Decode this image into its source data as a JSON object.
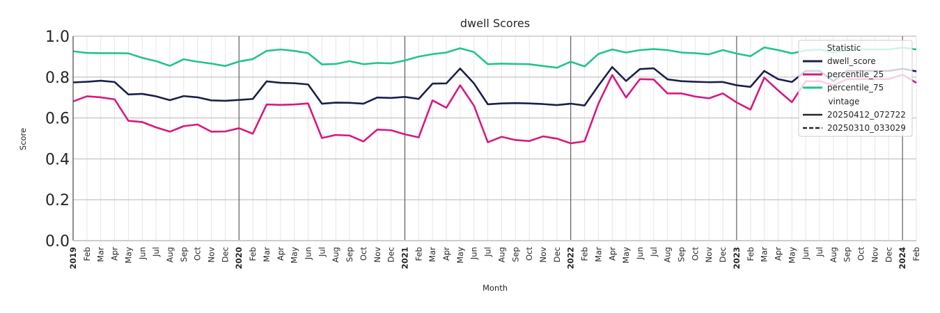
{
  "chart_data": {
    "type": "line",
    "title": "dwell Scores",
    "xlabel": "Month",
    "ylabel": "Score",
    "ylim": [
      0.0,
      1.0
    ],
    "yticks": [
      "0.0",
      "0.2",
      "0.4",
      "0.6",
      "0.8",
      "1.0"
    ],
    "grid": true,
    "legend_placement": "top-right",
    "x": [
      "2019-01",
      "2019-02",
      "2019-03",
      "2019-04",
      "2019-05",
      "2019-06",
      "2019-07",
      "2019-08",
      "2019-09",
      "2019-10",
      "2019-11",
      "2019-12",
      "2020-01",
      "2020-02",
      "2020-03",
      "2020-04",
      "2020-05",
      "2020-06",
      "2020-07",
      "2020-08",
      "2020-09",
      "2020-10",
      "2020-11",
      "2020-12",
      "2021-01",
      "2021-02",
      "2021-03",
      "2021-04",
      "2021-05",
      "2021-06",
      "2021-07",
      "2021-08",
      "2021-09",
      "2021-10",
      "2021-11",
      "2021-12",
      "2022-01",
      "2022-02",
      "2022-03",
      "2022-04",
      "2022-05",
      "2022-06",
      "2022-07",
      "2022-08",
      "2022-09",
      "2022-10",
      "2022-11",
      "2022-12",
      "2023-01",
      "2023-02",
      "2023-03",
      "2023-04",
      "2023-05",
      "2023-06",
      "2023-07",
      "2023-08",
      "2023-09",
      "2023-10",
      "2023-11",
      "2023-12",
      "2024-01",
      "2024-02"
    ],
    "x_tick_labels": [
      "2019",
      "Feb",
      "Mar",
      "Apr",
      "May",
      "Jun",
      "Jul",
      "Aug",
      "Sep",
      "Oct",
      "Nov",
      "Dec",
      "2020",
      "Feb",
      "Mar",
      "Apr",
      "May",
      "Jun",
      "Jul",
      "Aug",
      "Sep",
      "Oct",
      "Nov",
      "Dec",
      "2021",
      "Feb",
      "Mar",
      "Apr",
      "May",
      "Jun",
      "Jul",
      "Aug",
      "Sep",
      "Oct",
      "Nov",
      "Dec",
      "2022",
      "Feb",
      "Mar",
      "Apr",
      "May",
      "Jun",
      "Jul",
      "Aug",
      "Sep",
      "Oct",
      "Nov",
      "Dec",
      "2023",
      "Feb",
      "Mar",
      "Apr",
      "May",
      "Jun",
      "Jul",
      "Aug",
      "Sep",
      "Oct",
      "Nov",
      "Dec",
      "2024",
      "Feb"
    ],
    "series": [
      {
        "name": "dwell_score",
        "color": "#1b1f4b",
        "values": [
          0.774,
          0.777,
          0.782,
          0.776,
          0.715,
          0.718,
          0.706,
          0.687,
          0.707,
          0.701,
          0.686,
          0.684,
          0.688,
          0.693,
          0.779,
          0.772,
          0.77,
          0.764,
          0.67,
          0.675,
          0.674,
          0.67,
          0.7,
          0.698,
          0.703,
          0.693,
          0.768,
          0.769,
          0.842,
          0.769,
          0.667,
          0.671,
          0.673,
          0.671,
          0.668,
          0.663,
          0.67,
          0.661,
          0.758,
          0.849,
          0.781,
          0.839,
          0.843,
          0.789,
          0.78,
          0.777,
          0.775,
          0.776,
          0.76,
          0.752,
          0.83,
          0.79,
          0.776,
          0.83,
          0.83,
          0.78,
          0.83,
          0.83,
          0.83,
          0.83,
          0.841,
          0.828
        ]
      },
      {
        "name": "percentile_25",
        "color": "#d6197f",
        "values": [
          0.681,
          0.706,
          0.701,
          0.691,
          0.586,
          0.58,
          0.554,
          0.533,
          0.56,
          0.568,
          0.533,
          0.534,
          0.55,
          0.523,
          0.666,
          0.664,
          0.666,
          0.671,
          0.502,
          0.517,
          0.514,
          0.485,
          0.543,
          0.54,
          0.52,
          0.505,
          0.686,
          0.65,
          0.76,
          0.66,
          0.481,
          0.508,
          0.492,
          0.487,
          0.51,
          0.499,
          0.476,
          0.486,
          0.67,
          0.81,
          0.7,
          0.79,
          0.788,
          0.72,
          0.72,
          0.705,
          0.696,
          0.72,
          0.676,
          0.641,
          0.797,
          0.735,
          0.677,
          0.78,
          0.78,
          0.76,
          0.79,
          0.79,
          0.79,
          0.79,
          0.812,
          0.772
        ]
      },
      {
        "name": "percentile_75",
        "color": "#22c38e",
        "values": [
          0.926,
          0.918,
          0.917,
          0.917,
          0.916,
          0.894,
          0.878,
          0.855,
          0.887,
          0.875,
          0.866,
          0.854,
          0.876,
          0.888,
          0.928,
          0.935,
          0.928,
          0.917,
          0.862,
          0.864,
          0.878,
          0.863,
          0.869,
          0.867,
          0.881,
          0.9,
          0.912,
          0.92,
          0.941,
          0.922,
          0.863,
          0.866,
          0.864,
          0.863,
          0.854,
          0.846,
          0.875,
          0.852,
          0.913,
          0.935,
          0.92,
          0.932,
          0.937,
          0.932,
          0.92,
          0.917,
          0.911,
          0.932,
          0.915,
          0.902,
          0.945,
          0.932,
          0.916,
          0.93,
          0.935,
          0.92,
          0.93,
          0.935,
          0.935,
          0.935,
          0.944,
          0.935
        ]
      }
    ],
    "legend": {
      "title": "Statistic",
      "entries": [
        {
          "label": "dwell_score",
          "color": "#1b1f4b",
          "style": "solid"
        },
        {
          "label": "percentile_25",
          "color": "#d6197f",
          "style": "solid"
        },
        {
          "label": "percentile_75",
          "color": "#22c38e",
          "style": "solid"
        }
      ],
      "subtitle": "vintage",
      "style_entries": [
        {
          "label": "20250412_072722",
          "style": "solid"
        },
        {
          "label": "20250310_033029",
          "style": "dashed"
        }
      ]
    }
  }
}
